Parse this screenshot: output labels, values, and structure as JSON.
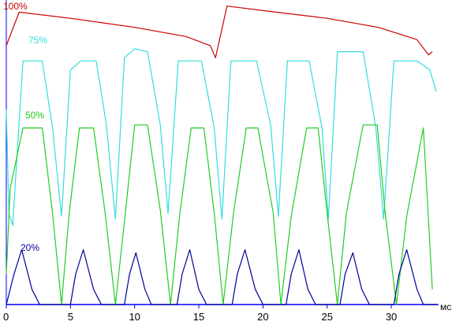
{
  "chart_data": {
    "type": "line",
    "x_unit": "мс",
    "x_ticks": [
      0,
      5,
      10,
      15,
      20,
      25,
      30
    ],
    "xlim": [
      0,
      33.5
    ],
    "ylim": [
      0,
      100
    ],
    "grid": false,
    "legend": "inline",
    "colors": {
      "background": "#ffffff",
      "axis": "#0000ff",
      "series_100": "#cc0000",
      "series_75": "#33dddd",
      "series_50": "#22cc22",
      "series_20": "#000099"
    },
    "series": [
      {
        "name": "100%",
        "color": "#cc0000",
        "x": [
          0,
          1.0,
          5.0,
          10.0,
          14.0,
          15.9,
          16.3,
          17.2,
          21.0,
          25.0,
          29.0,
          32.0,
          32.9,
          33.2
        ],
        "y": [
          85,
          96,
          94,
          91,
          88,
          85,
          81,
          98,
          96,
          94,
          91,
          87,
          82,
          83
        ]
      },
      {
        "name": "75%",
        "color": "#33dddd",
        "x": [
          0,
          0.2,
          0.5,
          1.3,
          2.8,
          3.6,
          4.3,
          5.0,
          5.8,
          7.0,
          7.8,
          8.5,
          9.2,
          10.0,
          11.0,
          12.0,
          12.6,
          13.4,
          14.2,
          15.2,
          16.2,
          16.8,
          17.5,
          18.5,
          19.5,
          20.6,
          21.2,
          21.9,
          22.7,
          23.6,
          24.6,
          25.1,
          25.8,
          26.8,
          27.8,
          28.8,
          29.4,
          30.2,
          30.9,
          32.0,
          33.0,
          33.5
        ],
        "y": [
          64,
          30,
          26,
          80,
          80,
          58,
          29,
          77,
          80,
          80,
          59,
          28,
          81,
          84,
          83,
          59,
          30,
          80,
          80,
          80,
          58,
          28,
          80,
          80,
          80,
          59,
          29,
          80,
          80,
          80,
          58,
          28,
          83,
          83,
          83,
          58,
          28,
          80,
          80,
          80,
          77,
          70
        ]
      },
      {
        "name": "50%",
        "color": "#22cc22",
        "x": [
          0,
          0.3,
          1.3,
          2.8,
          3.6,
          4.3,
          4.9,
          5.7,
          6.8,
          7.7,
          8.5,
          9.3,
          10.0,
          11.0,
          12.0,
          12.8,
          13.5,
          14.4,
          15.4,
          16.2,
          16.9,
          17.7,
          18.7,
          19.6,
          20.8,
          21.4,
          22.2,
          23.4,
          24.3,
          25.0,
          25.8,
          26.5,
          27.8,
          28.9,
          29.5,
          30.4,
          31.2,
          32.5,
          33.2
        ],
        "y": [
          10,
          38,
          58,
          58,
          30,
          0,
          30,
          58,
          58,
          30,
          0,
          31,
          59,
          59,
          31,
          0,
          29,
          58,
          58,
          30,
          0,
          30,
          58,
          58,
          30,
          0,
          29,
          58,
          58,
          30,
          0,
          30,
          59,
          59,
          31,
          0,
          29,
          58,
          5
        ]
      },
      {
        "name": "20%",
        "color": "#000099",
        "x": [
          0,
          0.6,
          1.2,
          2.0,
          2.6,
          5.0,
          5.4,
          6.0,
          6.8,
          7.4,
          9.2,
          9.6,
          10.1,
          10.8,
          11.3,
          13.3,
          13.7,
          14.3,
          15.0,
          15.6,
          17.6,
          18.0,
          18.6,
          19.4,
          20.0,
          21.8,
          22.2,
          22.8,
          23.5,
          24.1,
          26.0,
          26.4,
          27.0,
          27.7,
          28.3,
          30.2,
          30.6,
          31.2,
          32.0,
          32.5,
          33.5
        ],
        "y": [
          0,
          10,
          18,
          5,
          0,
          0,
          10,
          18,
          5,
          0,
          0,
          10,
          17,
          5,
          0,
          0,
          10,
          18,
          5,
          0,
          0,
          10,
          18,
          5,
          0,
          0,
          10,
          18,
          5,
          0,
          0,
          10,
          17,
          5,
          0,
          0,
          10,
          18,
          5,
          0,
          0
        ]
      }
    ]
  }
}
